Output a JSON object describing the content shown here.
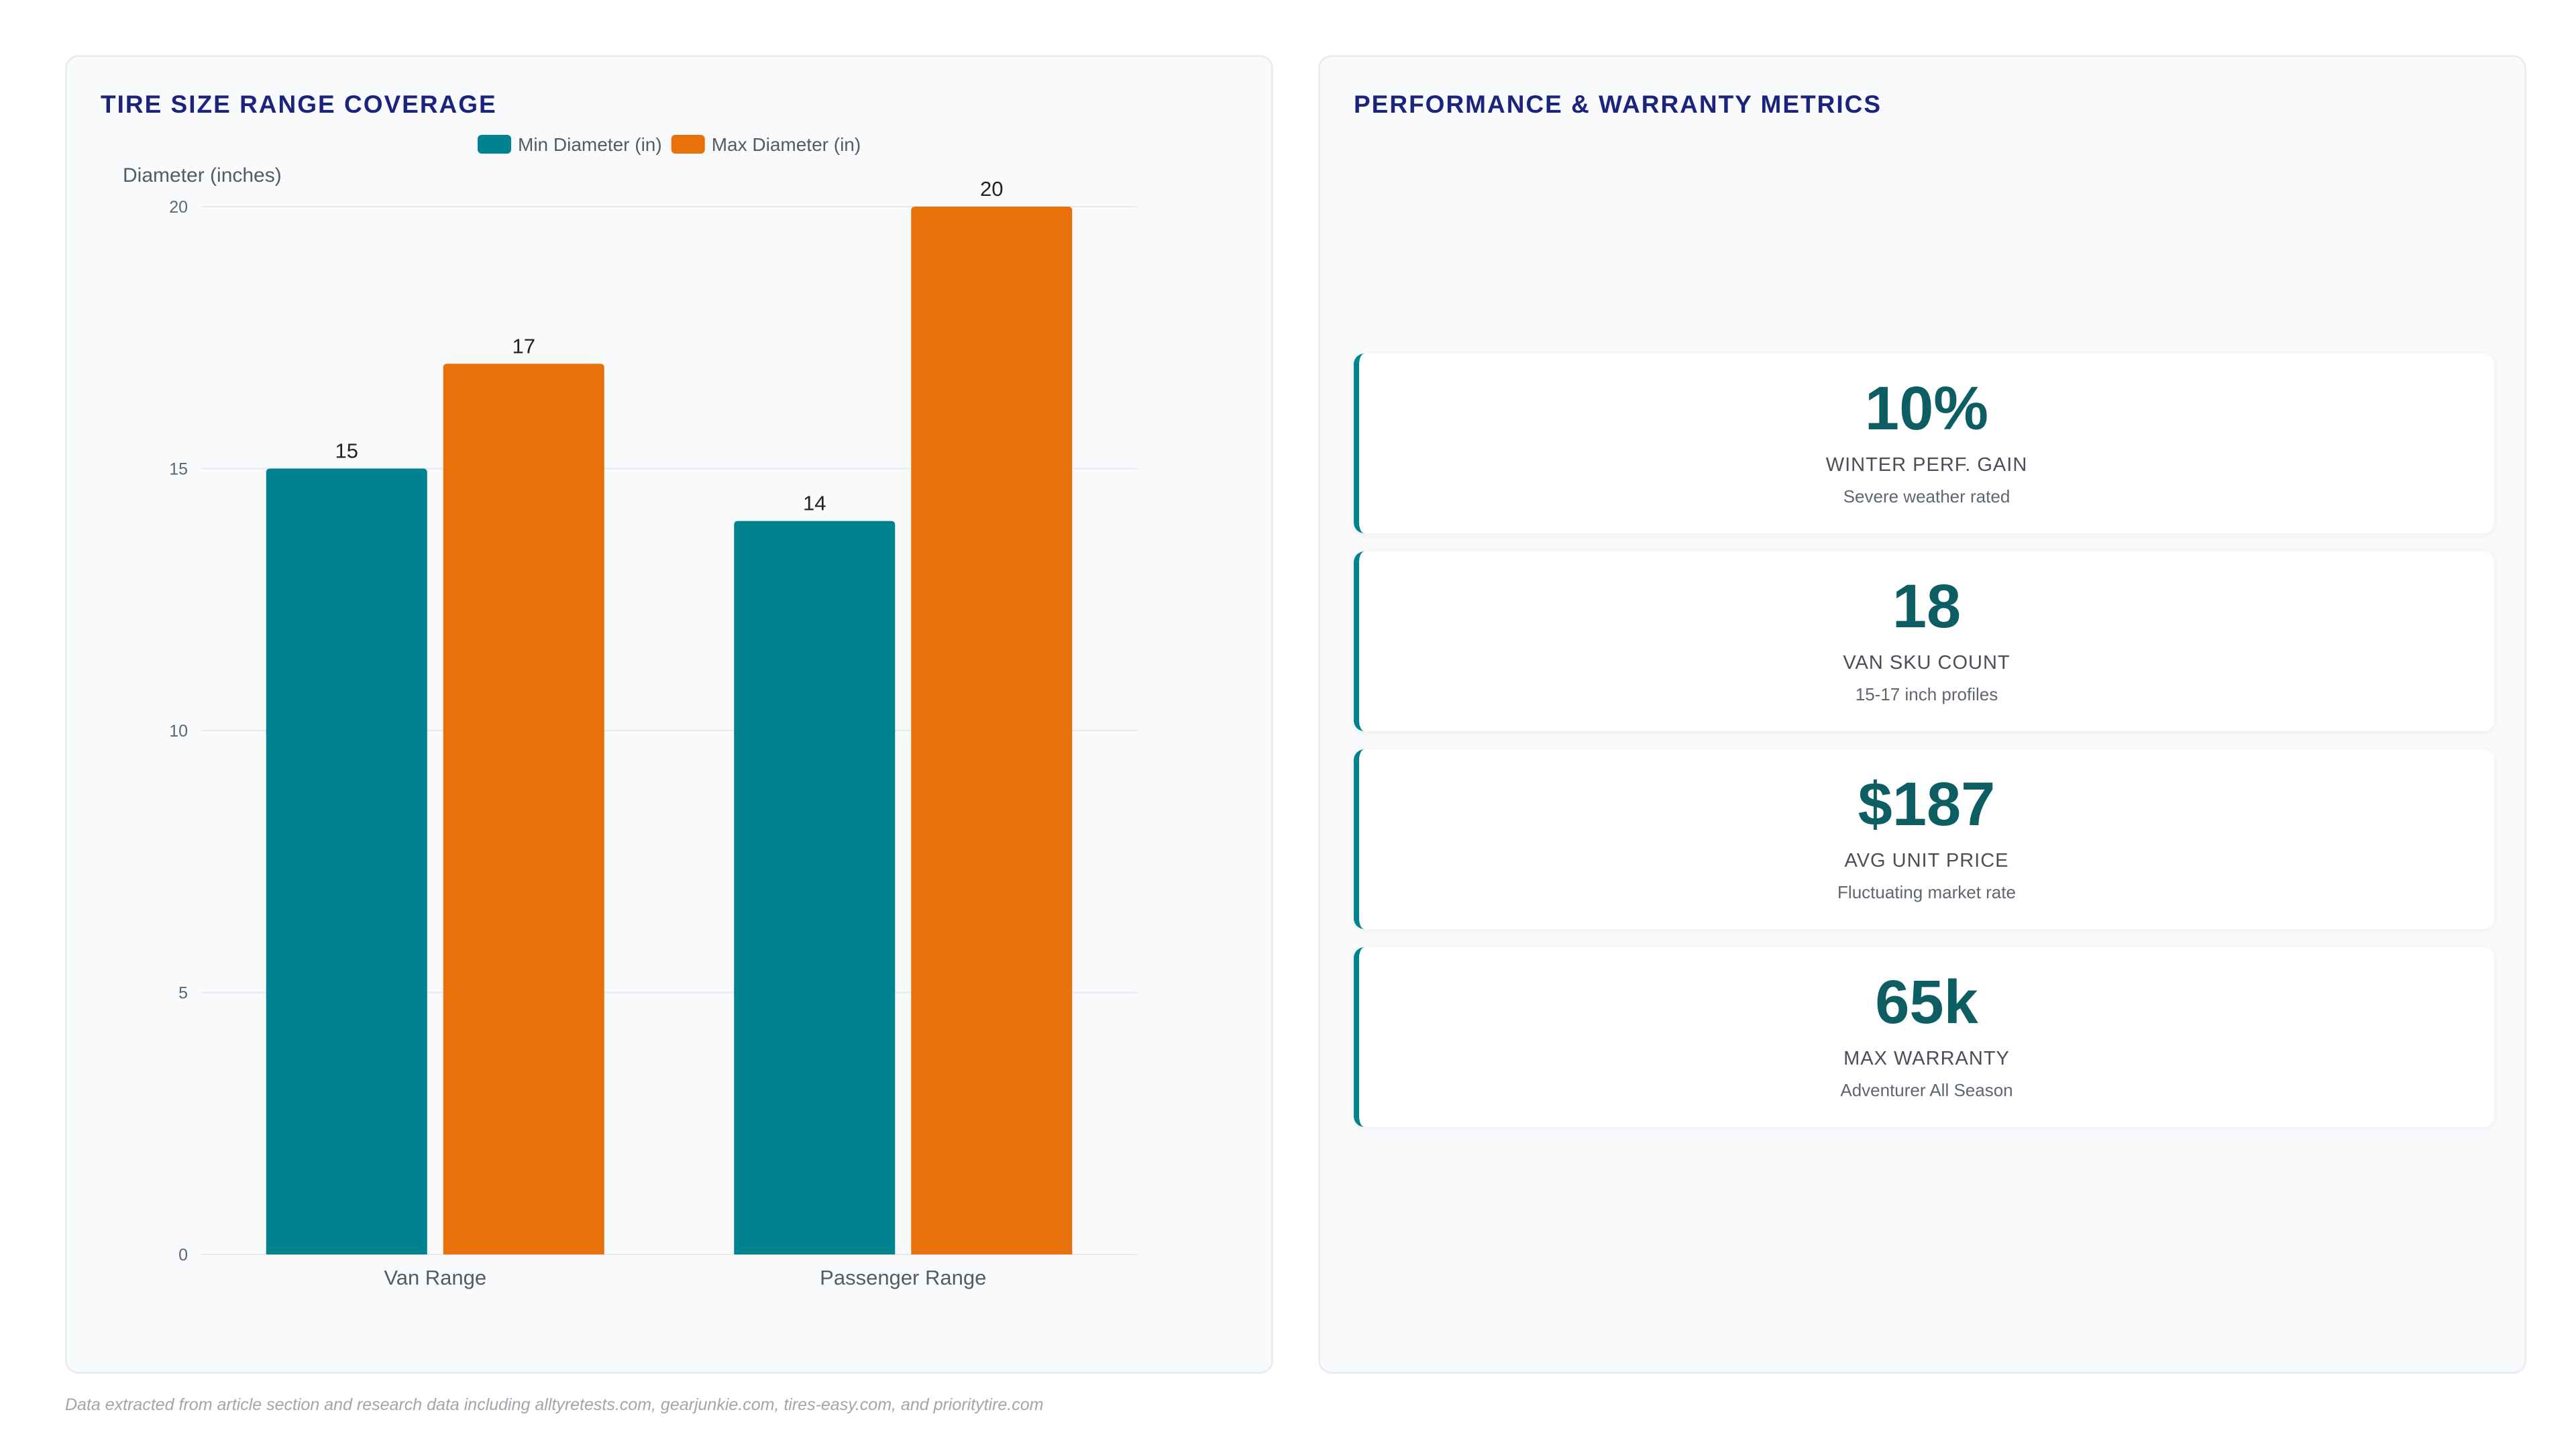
{
  "left_panel": {
    "title": "TIRE SIZE RANGE COVERAGE"
  },
  "right_panel": {
    "title": "PERFORMANCE & WARRANTY METRICS",
    "kpis": [
      {
        "value": "10%",
        "label": "WINTER PERF. GAIN",
        "sub": "Severe weather rated"
      },
      {
        "value": "18",
        "label": "VAN SKU COUNT",
        "sub": "15-17 inch profiles"
      },
      {
        "value": "$187",
        "label": "AVG UNIT PRICE",
        "sub": "Fluctuating market rate"
      },
      {
        "value": "65k",
        "label": "MAX WARRANTY",
        "sub": "Adventurer All Season"
      }
    ]
  },
  "footnote": "Data extracted from article section and research data including alltyretests.com, gearjunkie.com, tires-easy.com, and prioritytire.com",
  "chart_data": {
    "type": "bar",
    "categories": [
      "Van Range",
      "Passenger Range"
    ],
    "series": [
      {
        "name": "Min Diameter (in)",
        "values": [
          15,
          14
        ],
        "color": "#00838f"
      },
      {
        "name": "Max Diameter (in)",
        "values": [
          17,
          20
        ],
        "color": "#e8710a"
      }
    ],
    "ylabel": "Diameter (inches)",
    "ylim": [
      0,
      20
    ],
    "yticks": [
      0,
      5,
      10,
      15,
      20
    ],
    "grid": true,
    "legend": "top-center",
    "data_labels": true
  }
}
